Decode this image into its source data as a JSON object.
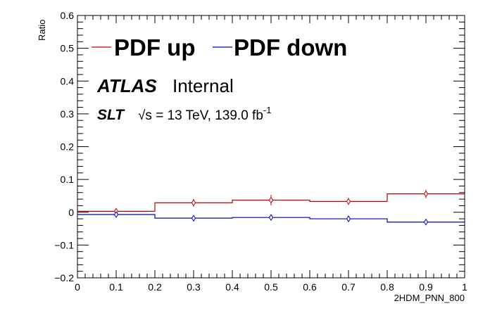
{
  "chart_data": {
    "type": "line",
    "title": "",
    "xlabel": "2HDM_PNN_800",
    "ylabel": "Ratio",
    "xlim": [
      0,
      1
    ],
    "ylim": [
      -0.2,
      0.6
    ],
    "x_tick_labels": [
      "0",
      "0.1",
      "0.2",
      "0.3",
      "0.4",
      "0.5",
      "0.6",
      "0.7",
      "0.8",
      "0.9",
      "1"
    ],
    "y_tick_labels": [
      "−0.2",
      "−0.1",
      "0",
      "0.1",
      "0.2",
      "0.3",
      "0.4",
      "0.5",
      "0.6"
    ],
    "bin_edges": [
      0,
      0.2,
      0.4,
      0.6,
      0.8,
      1.0
    ],
    "series": [
      {
        "name": "PDF up",
        "color": "#c00000",
        "style": "step-histogram",
        "values": [
          0.003,
          0.029,
          0.037,
          0.033,
          0.056
        ],
        "errors": [
          0.008,
          0.012,
          0.016,
          0.011,
          0.013
        ]
      },
      {
        "name": "PDF down",
        "color": "#0000b0",
        "style": "step-histogram",
        "values": [
          -0.007,
          -0.018,
          -0.016,
          -0.02,
          -0.03
        ],
        "errors": [
          0.004,
          0.005,
          0.005,
          0.005,
          0.004
        ]
      }
    ],
    "legend_position": "top",
    "annotations": {
      "atlas": "ATLAS",
      "internal": "Internal",
      "channel": "SLT",
      "energy_sqrt": "√s",
      "energy_text": " = 13 TeV, 139.0 fb",
      "energy_sup": "-1"
    }
  }
}
